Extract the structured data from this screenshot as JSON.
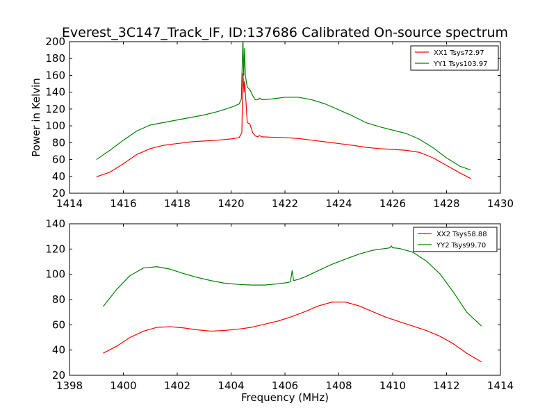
{
  "title": "Everest_3C147_Track_IF, ID:137686 Calibrated On-source spectrum",
  "ylabel": "Power in Kelvin",
  "xlabel": "Frequency (MHz)",
  "chart_data": [
    {
      "type": "line",
      "xlim": [
        1414,
        1430
      ],
      "ylim": [
        20,
        200
      ],
      "xticks": [
        1414,
        1416,
        1418,
        1420,
        1422,
        1424,
        1426,
        1428,
        1430
      ],
      "yticks": [
        20,
        40,
        60,
        80,
        100,
        120,
        140,
        160,
        180,
        200
      ],
      "legend_position": "top-right",
      "series": [
        {
          "name": "XX1 Tsys72.97",
          "color": "#ff0000",
          "points": [
            [
              1415.0,
              39.5
            ],
            [
              1415.5,
              45
            ],
            [
              1416.0,
              55
            ],
            [
              1416.5,
              66
            ],
            [
              1417.0,
              73
            ],
            [
              1417.5,
              77
            ],
            [
              1418.0,
              79
            ],
            [
              1418.5,
              81
            ],
            [
              1419.0,
              82
            ],
            [
              1419.5,
              83
            ],
            [
              1420.0,
              84.5
            ],
            [
              1420.3,
              86
            ],
            [
              1420.4,
              92
            ],
            [
              1420.44,
              162
            ],
            [
              1420.48,
              140
            ],
            [
              1420.5,
              153
            ],
            [
              1420.55,
              130
            ],
            [
              1420.6,
              104
            ],
            [
              1420.7,
              102
            ],
            [
              1420.8,
              92
            ],
            [
              1420.9,
              88
            ],
            [
              1421.0,
              87
            ],
            [
              1421.05,
              88.5
            ],
            [
              1421.15,
              87
            ],
            [
              1421.5,
              86.5
            ],
            [
              1422.0,
              86
            ],
            [
              1422.5,
              85
            ],
            [
              1423.0,
              83
            ],
            [
              1423.5,
              81
            ],
            [
              1424.0,
              79
            ],
            [
              1424.5,
              77
            ],
            [
              1425.0,
              74.5
            ],
            [
              1425.5,
              73
            ],
            [
              1426.0,
              72
            ],
            [
              1426.5,
              71
            ],
            [
              1427.0,
              68.5
            ],
            [
              1427.5,
              62
            ],
            [
              1428.0,
              53
            ],
            [
              1428.5,
              44
            ],
            [
              1428.9,
              37.5
            ]
          ]
        },
        {
          "name": "YY1 Tsys103.97",
          "color": "#008000",
          "points": [
            [
              1415.0,
              60
            ],
            [
              1415.5,
              71
            ],
            [
              1416.0,
              83
            ],
            [
              1416.5,
              94
            ],
            [
              1417.0,
              101
            ],
            [
              1417.5,
              104
            ],
            [
              1418.0,
              107
            ],
            [
              1418.5,
              110
            ],
            [
              1419.0,
              113
            ],
            [
              1419.5,
              117
            ],
            [
              1420.0,
              122
            ],
            [
              1420.3,
              126
            ],
            [
              1420.38,
              132
            ],
            [
              1420.44,
              205
            ],
            [
              1420.47,
              160
            ],
            [
              1420.5,
              192
            ],
            [
              1420.53,
              160
            ],
            [
              1420.6,
              146
            ],
            [
              1420.7,
              143
            ],
            [
              1420.8,
              136
            ],
            [
              1420.9,
              131
            ],
            [
              1421.0,
              131
            ],
            [
              1421.05,
              133
            ],
            [
              1421.15,
              131
            ],
            [
              1421.5,
              132
            ],
            [
              1422.0,
              134
            ],
            [
              1422.5,
              134
            ],
            [
              1423.0,
              131
            ],
            [
              1423.5,
              126
            ],
            [
              1424.0,
              119
            ],
            [
              1424.5,
              112
            ],
            [
              1425.0,
              104
            ],
            [
              1425.5,
              99
            ],
            [
              1426.0,
              95
            ],
            [
              1426.5,
              91
            ],
            [
              1427.0,
              84
            ],
            [
              1427.5,
              74
            ],
            [
              1428.0,
              62
            ],
            [
              1428.5,
              52
            ],
            [
              1428.9,
              47.5
            ]
          ]
        }
      ]
    },
    {
      "type": "line",
      "xlim": [
        1398,
        1414
      ],
      "ylim": [
        20,
        140
      ],
      "xticks": [
        1398,
        1400,
        1402,
        1404,
        1406,
        1408,
        1410,
        1412,
        1414
      ],
      "yticks": [
        20,
        40,
        60,
        80,
        100,
        120,
        140
      ],
      "legend_position": "top-right",
      "series": [
        {
          "name": "XX2 Tsys58.88",
          "color": "#ff0000",
          "points": [
            [
              1399.25,
              37.5
            ],
            [
              1399.75,
              43
            ],
            [
              1400.25,
              50
            ],
            [
              1400.75,
              55
            ],
            [
              1401.25,
              58
            ],
            [
              1401.75,
              58.5
            ],
            [
              1402.25,
              57.5
            ],
            [
              1402.75,
              56
            ],
            [
              1403.25,
              55
            ],
            [
              1403.75,
              55.5
            ],
            [
              1404.25,
              56.5
            ],
            [
              1404.75,
              58
            ],
            [
              1405.25,
              60.5
            ],
            [
              1405.75,
              63
            ],
            [
              1406.25,
              66.5
            ],
            [
              1406.75,
              70.5
            ],
            [
              1407.25,
              75
            ],
            [
              1407.75,
              78
            ],
            [
              1408.25,
              78
            ],
            [
              1408.75,
              75
            ],
            [
              1409.25,
              70.5
            ],
            [
              1409.75,
              66
            ],
            [
              1410.25,
              62.5
            ],
            [
              1410.75,
              59
            ],
            [
              1411.25,
              55.5
            ],
            [
              1411.75,
              51
            ],
            [
              1412.25,
              45
            ],
            [
              1412.75,
              37.5
            ],
            [
              1413.3,
              30.5
            ]
          ]
        },
        {
          "name": "YY2 Tsys99.70",
          "color": "#008000",
          "points": [
            [
              1399.25,
              74.5
            ],
            [
              1399.75,
              88
            ],
            [
              1400.25,
              99
            ],
            [
              1400.75,
              105
            ],
            [
              1401.25,
              106
            ],
            [
              1401.75,
              104
            ],
            [
              1402.25,
              100.5
            ],
            [
              1402.75,
              97.5
            ],
            [
              1403.25,
              95
            ],
            [
              1403.75,
              93
            ],
            [
              1404.25,
              92
            ],
            [
              1404.75,
              91.5
            ],
            [
              1405.25,
              91.5
            ],
            [
              1405.75,
              92.5
            ],
            [
              1406.1,
              93.5
            ],
            [
              1406.2,
              94
            ],
            [
              1406.27,
              103
            ],
            [
              1406.32,
              95
            ],
            [
              1406.5,
              96
            ],
            [
              1406.75,
              98
            ],
            [
              1407.25,
              103
            ],
            [
              1407.75,
              108
            ],
            [
              1408.25,
              112
            ],
            [
              1408.75,
              116
            ],
            [
              1409.25,
              119
            ],
            [
              1409.75,
              120.5
            ],
            [
              1409.9,
              121
            ],
            [
              1409.95,
              122.5
            ],
            [
              1410.0,
              121
            ],
            [
              1410.25,
              120.5
            ],
            [
              1410.75,
              117.5
            ],
            [
              1411.25,
              110.5
            ],
            [
              1411.75,
              100.5
            ],
            [
              1412.25,
              86
            ],
            [
              1412.75,
              70
            ],
            [
              1413.3,
              59
            ]
          ]
        }
      ]
    }
  ]
}
